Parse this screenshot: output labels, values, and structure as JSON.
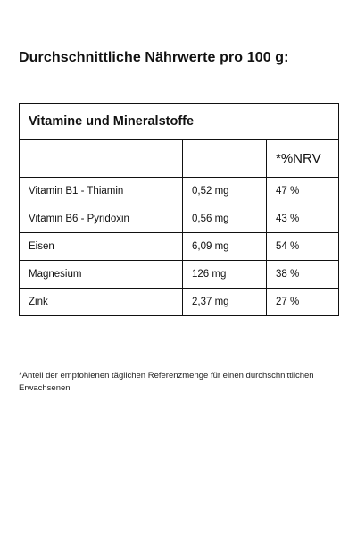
{
  "heading": "Durchschnittliche Nährwerte pro 100 g:",
  "table": {
    "title": "Vitamine und Mineralstoffe",
    "header": [
      "",
      "",
      "*%NRV"
    ],
    "rows": [
      [
        "Vitamin B1 - Thiamin",
        "0,52 mg",
        "47 %"
      ],
      [
        "Vitamin B6 - Pyridoxin",
        "0,56 mg",
        "43 %"
      ],
      [
        "Eisen",
        "6,09 mg",
        "54 %"
      ],
      [
        "Magnesium",
        "126 mg",
        "38 %"
      ],
      [
        "Zink",
        "2,37 mg",
        "27 %"
      ]
    ]
  },
  "footnote": "*Anteil der empfohlenen täglichen Referenzmenge für einen durchschnittlichen Erwachsenen"
}
